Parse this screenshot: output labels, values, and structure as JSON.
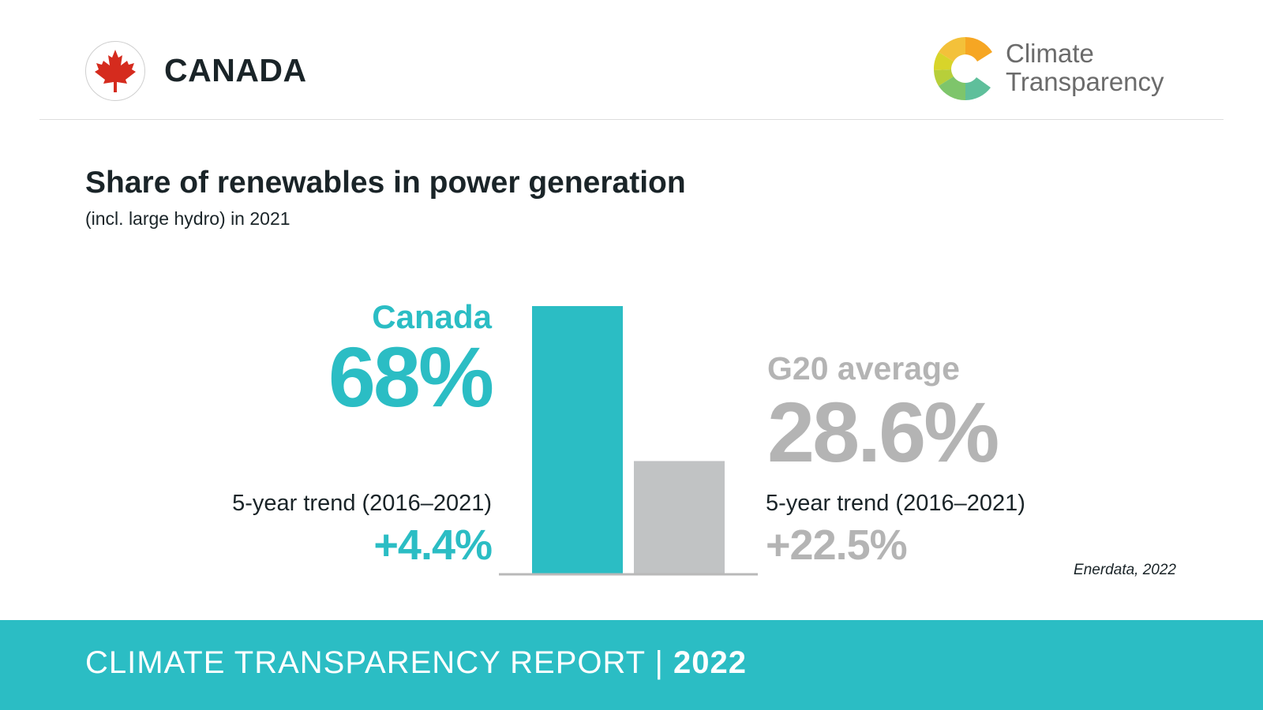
{
  "header": {
    "country": "CANADA",
    "brand_line1": "Climate",
    "brand_line2": "Transparency"
  },
  "title": "Share of renewables in power generation",
  "subtitle": "(incl. large hydro) in 2021",
  "canada": {
    "label": "Canada",
    "value_text": "68%",
    "trend_label": "5-year trend (2016–2021)",
    "trend_value": "+4.4%"
  },
  "g20": {
    "label": "G20 average",
    "value_text": "28.6%",
    "trend_label": "5-year trend (2016–2021)",
    "trend_value": "+22.5%"
  },
  "source": "Enerdata, 2022",
  "footer": {
    "report": "CLIMATE TRANSPARENCY REPORT | ",
    "year": "2022"
  },
  "colors": {
    "canada": "#2bbdc4",
    "g20": "#c1c3c4",
    "baseline": "#b9b9b9",
    "flag_red": "#d52b1e"
  },
  "chart_data": {
    "type": "bar",
    "title": "Share of renewables in power generation",
    "categories": [
      "Canada",
      "G20 average"
    ],
    "values": [
      68,
      28.6
    ],
    "unit": "%",
    "ylim": [
      0,
      68
    ],
    "grid": false
  }
}
